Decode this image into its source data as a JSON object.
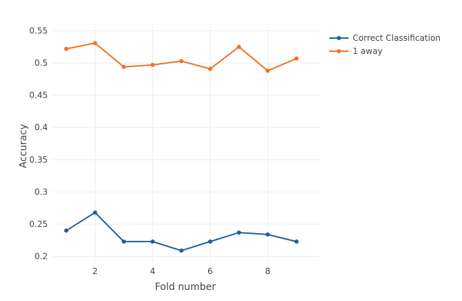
{
  "chart_data": {
    "type": "line",
    "xlabel": "Fold number",
    "ylabel": "Accuracy",
    "x": [
      1,
      2,
      3,
      4,
      5,
      6,
      7,
      8,
      9
    ],
    "xticks": [
      2,
      4,
      6,
      8
    ],
    "xlim": [
      0.5,
      9.8
    ],
    "yticks": [
      0.2,
      0.25,
      0.3,
      0.35,
      0.4,
      0.45,
      0.5,
      0.55
    ],
    "ytick_labels": [
      "0.2",
      "0.25",
      "0.3",
      "0.35",
      "0.4",
      "0.45",
      "0.5",
      "0.55"
    ],
    "ylim": [
      0.192,
      0.557
    ],
    "grid": true,
    "legend_position": "top-right",
    "series": [
      {
        "name": "Correct Classification",
        "color": "#1f5f99",
        "values": [
          0.24,
          0.268,
          0.223,
          0.223,
          0.209,
          0.223,
          0.237,
          0.234,
          0.223
        ]
      },
      {
        "name": "1 away",
        "color": "#f07124",
        "values": [
          0.522,
          0.531,
          0.494,
          0.497,
          0.503,
          0.491,
          0.525,
          0.488,
          0.507
        ]
      }
    ]
  }
}
